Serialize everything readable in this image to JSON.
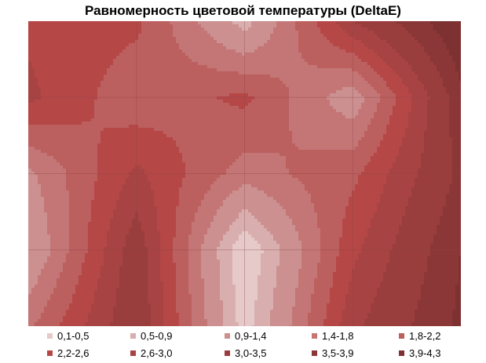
{
  "chart_data": {
    "type": "heatmap",
    "title": "Равномерность цветовой температуры (DeltaE)",
    "xlabel": "",
    "ylabel": "",
    "grid": true,
    "legend_position": "bottom",
    "columns": 5,
    "rows": 5,
    "values": [
      [
        2.5,
        2.3,
        0.7,
        3.0,
        4.3
      ],
      [
        2.7,
        1.9,
        2.3,
        1.1,
        3.8
      ],
      [
        1.3,
        2.7,
        1.6,
        2.1,
        3.6
      ],
      [
        0.9,
        3.3,
        0.1,
        2.5,
        3.9
      ],
      [
        1.7,
        3.4,
        0.3,
        2.9,
        4.0
      ]
    ],
    "bands": [
      {
        "label": "0,1-0,5",
        "min": 0.1,
        "max": 0.5,
        "color": "#e6c9c9"
      },
      {
        "label": "0,5-0,9",
        "min": 0.5,
        "max": 0.9,
        "color": "#d9aeae"
      },
      {
        "label": "0,9-1,4",
        "min": 0.9,
        "max": 1.4,
        "color": "#cc9090"
      },
      {
        "label": "1,4-1,8",
        "min": 1.4,
        "max": 1.8,
        "color": "#c47676"
      },
      {
        "label": "1,8-2,2",
        "min": 1.8,
        "max": 2.2,
        "color": "#bc5f5f"
      },
      {
        "label": "2,2-2,6",
        "min": 2.2,
        "max": 2.6,
        "color": "#b54747"
      },
      {
        "label": "2,6-3,0",
        "min": 2.6,
        "max": 3.0,
        "color": "#a84343"
      },
      {
        "label": "3,0-3,5",
        "min": 3.0,
        "max": 3.5,
        "color": "#9a3d3d"
      },
      {
        "label": "3,5-3,9",
        "min": 3.5,
        "max": 3.9,
        "color": "#8c3737"
      },
      {
        "label": "3,9-4,3",
        "min": 3.9,
        "max": 4.3,
        "color": "#7d3131"
      }
    ]
  }
}
